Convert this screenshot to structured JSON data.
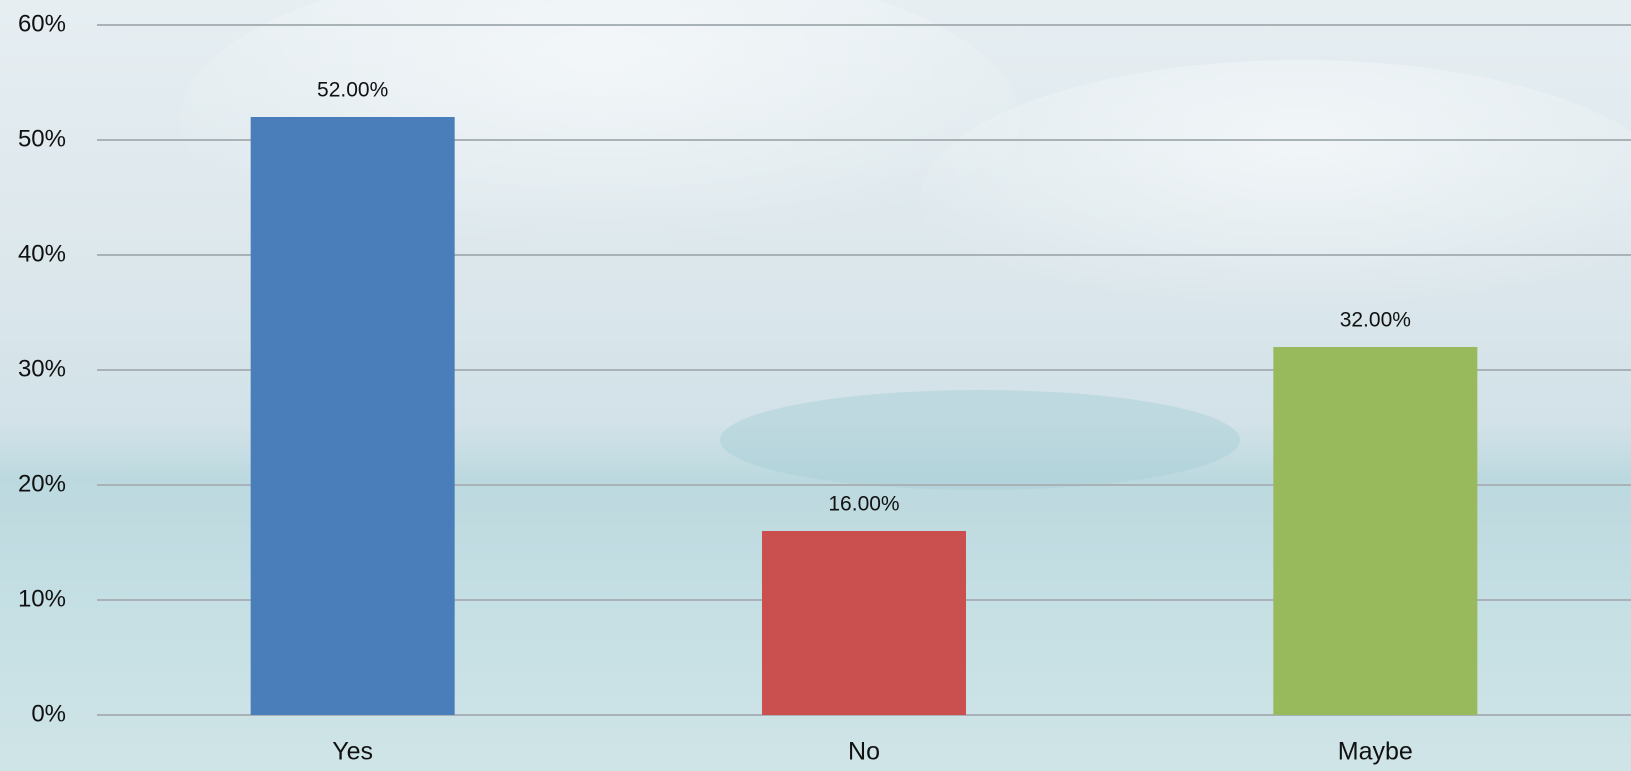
{
  "chart_data": {
    "type": "bar",
    "categories": [
      "Yes",
      "No",
      "Maybe"
    ],
    "values": [
      52,
      16,
      32
    ],
    "value_labels": [
      "52.00%",
      "16.00%",
      "32.00%"
    ],
    "colors": [
      "#4a7eba",
      "#c9504f",
      "#98b95c"
    ],
    "ylim": [
      0,
      60
    ],
    "yticks": [
      {
        "value": 0,
        "label": "0%"
      },
      {
        "value": 10,
        "label": "10%"
      },
      {
        "value": 20,
        "label": "20%"
      },
      {
        "value": 30,
        "label": "30%"
      },
      {
        "value": 40,
        "label": "40%"
      },
      {
        "value": 50,
        "label": "50%"
      },
      {
        "value": 60,
        "label": "60%"
      }
    ],
    "grid": true
  }
}
